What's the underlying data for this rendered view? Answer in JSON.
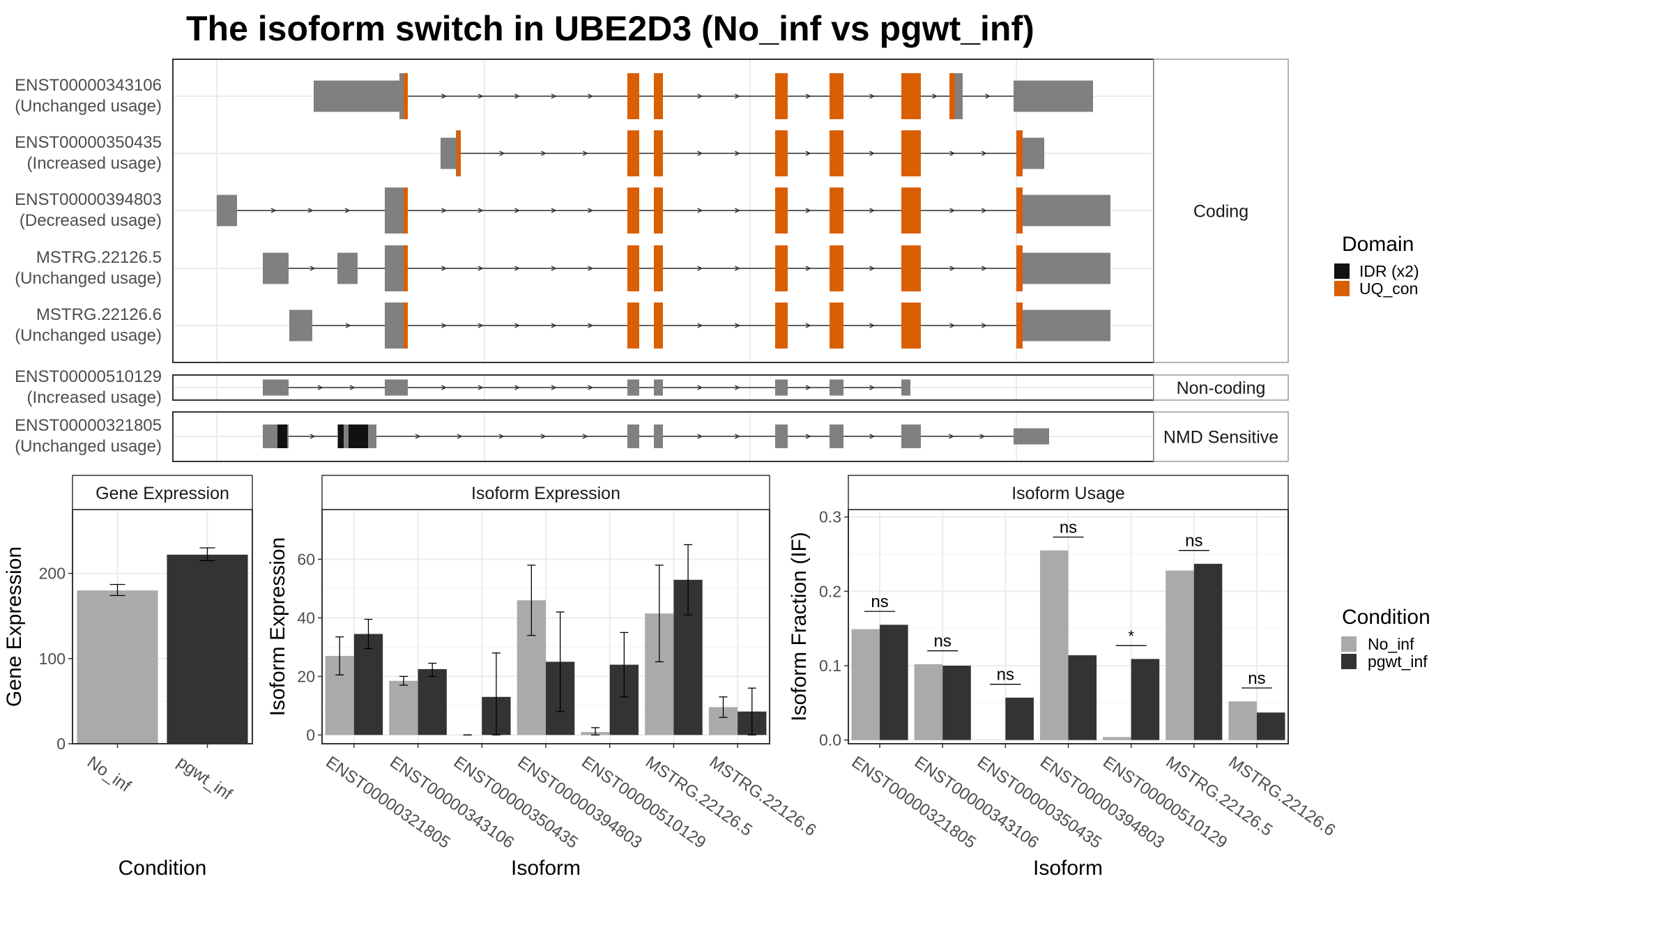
{
  "title": "The isoform switch in UBE2D3 (No_inf vs pgwt_inf)",
  "colors": {
    "exon": "#808080",
    "uq_con": "#D95F02",
    "idr": "#111111",
    "no_inf": "#AAAAAA",
    "pgwt_inf": "#333333"
  },
  "structure": {
    "genomic_axis": "shared",
    "groups": [
      {
        "label": "Coding",
        "transcripts": [
          {
            "id": "ENST00000343106",
            "usage": "(Unchanged usage)",
            "exons": [
              [
                "A",
                false
              ],
              [
                "B",
                true
              ],
              [
                "E",
                true
              ],
              [
                "F",
                true
              ],
              [
                "G",
                true
              ],
              [
                "H",
                true
              ],
              [
                "I",
                true
              ],
              [
                "J",
                true
              ],
              [
                "K",
                false
              ]
            ],
            "uq": [
              "B",
              "E",
              "F",
              "G",
              "H",
              "I",
              "J"
            ],
            "idr": []
          },
          {
            "id": "ENST00000350435",
            "usage": "(Increased usage)",
            "exons": [
              [
                "C",
                false
              ],
              [
                "D",
                true
              ],
              [
                "E",
                true
              ],
              [
                "F",
                true
              ],
              [
                "G",
                true
              ],
              [
                "H",
                true
              ],
              [
                "I",
                true
              ],
              [
                "L",
                false
              ]
            ],
            "uq": [
              "D",
              "E",
              "F",
              "G",
              "H",
              "I",
              "L"
            ],
            "idr": []
          },
          {
            "id": "ENST00000394803",
            "usage": "(Decreased usage)",
            "exons": [
              [
                "P",
                false
              ],
              [
                "S",
                true
              ],
              [
                "E",
                true
              ],
              [
                "F",
                true
              ],
              [
                "G",
                true
              ],
              [
                "H",
                true
              ],
              [
                "I",
                true
              ],
              [
                "M",
                false
              ]
            ],
            "uq": [
              "S",
              "E",
              "F",
              "G",
              "H",
              "I",
              "M"
            ],
            "idr": []
          },
          {
            "id": "MSTRG.22126.5",
            "usage": "(Unchanged usage)",
            "exons": [
              [
                "Q",
                false
              ],
              [
                "R",
                false
              ],
              [
                "S",
                true
              ],
              [
                "E",
                true
              ],
              [
                "F",
                true
              ],
              [
                "G",
                true
              ],
              [
                "H",
                true
              ],
              [
                "I",
                true
              ],
              [
                "M",
                false
              ]
            ],
            "uq": [
              "S",
              "E",
              "F",
              "G",
              "H",
              "I",
              "M"
            ],
            "idr": []
          },
          {
            "id": "MSTRG.22126.6",
            "usage": "(Unchanged usage)",
            "exons": [
              [
                "T",
                false
              ],
              [
                "S",
                true
              ],
              [
                "E",
                true
              ],
              [
                "F",
                true
              ],
              [
                "G",
                true
              ],
              [
                "H",
                true
              ],
              [
                "I",
                true
              ],
              [
                "M",
                false
              ]
            ],
            "uq": [
              "S",
              "E",
              "F",
              "G",
              "H",
              "I",
              "M"
            ],
            "idr": []
          }
        ]
      },
      {
        "label": "Non-coding",
        "transcripts": [
          {
            "id": "ENST00000510129",
            "usage": "(Increased usage)",
            "exons": [
              [
                "Q",
                false
              ],
              [
                "S",
                false
              ],
              [
                "E",
                false
              ],
              [
                "F",
                false
              ],
              [
                "G",
                false
              ],
              [
                "H",
                false
              ],
              [
                "U",
                false
              ]
            ],
            "uq": [],
            "idr": []
          }
        ]
      },
      {
        "label": "NMD Sensitive",
        "transcripts": [
          {
            "id": "ENST00000321805",
            "usage": "(Unchanged usage)",
            "exons": [
              [
                "Q",
                true
              ],
              [
                "V",
                true
              ],
              [
                "E",
                true
              ],
              [
                "F",
                true
              ],
              [
                "G",
                true
              ],
              [
                "H",
                true
              ],
              [
                "I",
                true
              ],
              [
                "W",
                false
              ]
            ],
            "uq": [],
            "idr": [
              "Q",
              "V"
            ]
          }
        ]
      }
    ],
    "legend": {
      "title": "Domain",
      "items": [
        {
          "label": "IDR (x2)",
          "color": "#111111"
        },
        {
          "label": "UQ_con",
          "color": "#D95F02"
        }
      ]
    }
  },
  "chart_data": [
    {
      "type": "bar",
      "strip": "Gene Expression",
      "xlabel": "Condition",
      "ylabel": "Gene Expression",
      "categories": [
        "No_inf",
        "pgwt_inf"
      ],
      "values": [
        180,
        222
      ],
      "errors": [
        [
          174,
          187
        ],
        [
          215,
          230
        ]
      ],
      "ylim": [
        0,
        275
      ],
      "yticks": [
        0,
        100,
        200
      ],
      "grid": true
    },
    {
      "type": "bar",
      "strip": "Isoform Expression",
      "xlabel": "Isoform",
      "ylabel": "Isoform Expression",
      "categories": [
        "ENST00000321805",
        "ENST00000343106",
        "ENST00000350435",
        "ENST00000394803",
        "ENST00000510129",
        "MSTRG.22126.5",
        "MSTRG.22126.6"
      ],
      "series": [
        {
          "name": "No_inf",
          "values": [
            27,
            18.5,
            0,
            46,
            1,
            41.5,
            9.5
          ],
          "errors": [
            [
              20.5,
              33.5
            ],
            [
              17,
              20
            ],
            [
              0,
              0
            ],
            [
              34,
              58
            ],
            [
              0,
              2.5
            ],
            [
              25,
              58
            ],
            [
              6,
              13
            ]
          ]
        },
        {
          "name": "pgwt_inf",
          "values": [
            34.5,
            22.5,
            13,
            25,
            24,
            53,
            8
          ],
          "errors": [
            [
              29.5,
              39.5
            ],
            [
              20,
              24.5
            ],
            [
              0,
              28
            ],
            [
              8,
              42
            ],
            [
              13,
              35
            ],
            [
              41,
              65
            ],
            [
              0,
              16
            ]
          ]
        }
      ],
      "ylim": [
        -3,
        77
      ],
      "yticks": [
        0,
        20,
        40,
        60
      ],
      "grid": true
    },
    {
      "type": "bar",
      "strip": "Isoform Usage",
      "xlabel": "Isoform",
      "ylabel": "Isoform Fraction (IF)",
      "categories": [
        "ENST00000321805",
        "ENST00000343106",
        "ENST00000350435",
        "ENST00000394803",
        "ENST00000510129",
        "MSTRG.22126.5",
        "MSTRG.22126.6"
      ],
      "series": [
        {
          "name": "No_inf",
          "values": [
            0.149,
            0.102,
            0.0,
            0.255,
            0.004,
            0.228,
            0.052
          ]
        },
        {
          "name": "pgwt_inf",
          "values": [
            0.155,
            0.1,
            0.057,
            0.114,
            0.109,
            0.237,
            0.037
          ]
        }
      ],
      "significance": [
        "ns",
        "ns",
        "ns",
        "ns",
        "*",
        "ns",
        "ns"
      ],
      "ylim": [
        -0.005,
        0.31
      ],
      "yticks": [
        0.0,
        0.1,
        0.2,
        0.3
      ],
      "ytick_labels": [
        "0.0",
        "0.1",
        "0.2",
        "0.3"
      ],
      "grid": true
    }
  ],
  "condition_legend": {
    "title": "Condition",
    "items": [
      {
        "label": "No_inf",
        "color": "#AAAAAA"
      },
      {
        "label": "pgwt_inf",
        "color": "#333333"
      }
    ]
  }
}
